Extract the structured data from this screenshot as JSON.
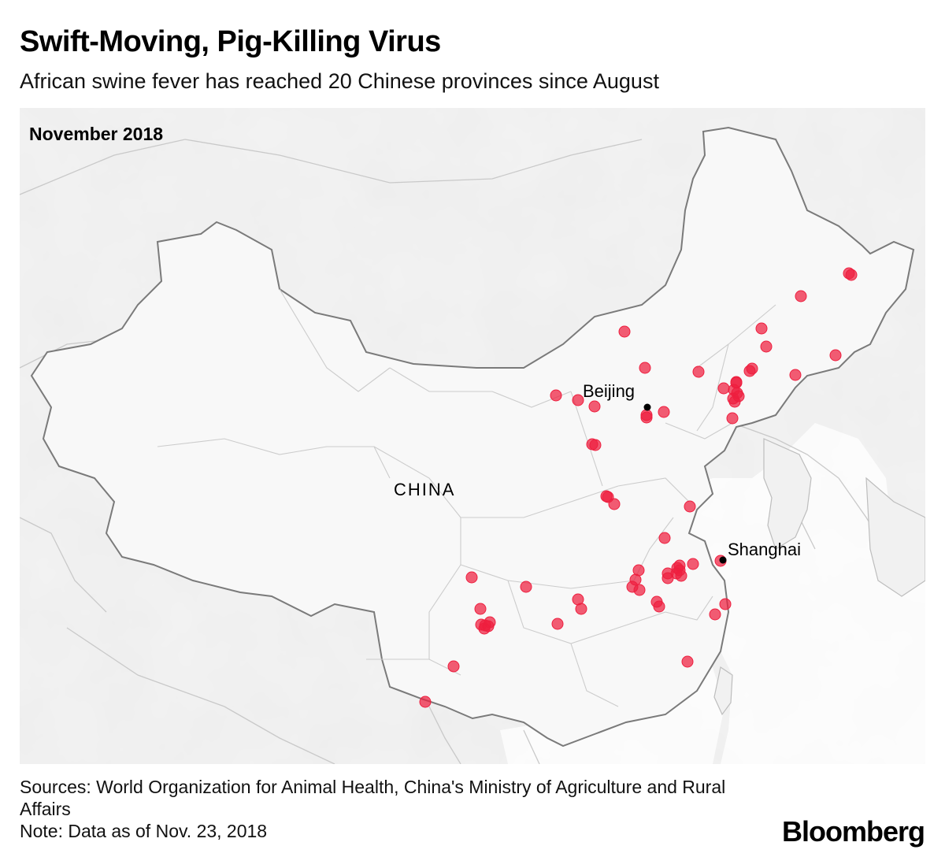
{
  "header": {
    "title": "Swift-Moving, Pig-Killing Virus",
    "subtitle": "African swine fever has reached 20 Chinese provinces since August"
  },
  "map": {
    "date_label": "November 2018",
    "country_label": "CHINA",
    "cities": [
      {
        "name": "Beijing"
      },
      {
        "name": "Shanghai"
      }
    ],
    "outbreak_color": "#ee1f3f",
    "city_marker_color": "#000000",
    "outbreak_count": 66
  },
  "footer": {
    "sources": "Sources: World Organization for Animal Health, China's Ministry of Agriculture and Rural Affairs",
    "note": "Note: Data as of Nov. 23, 2018",
    "logo": "Bloomberg"
  }
}
